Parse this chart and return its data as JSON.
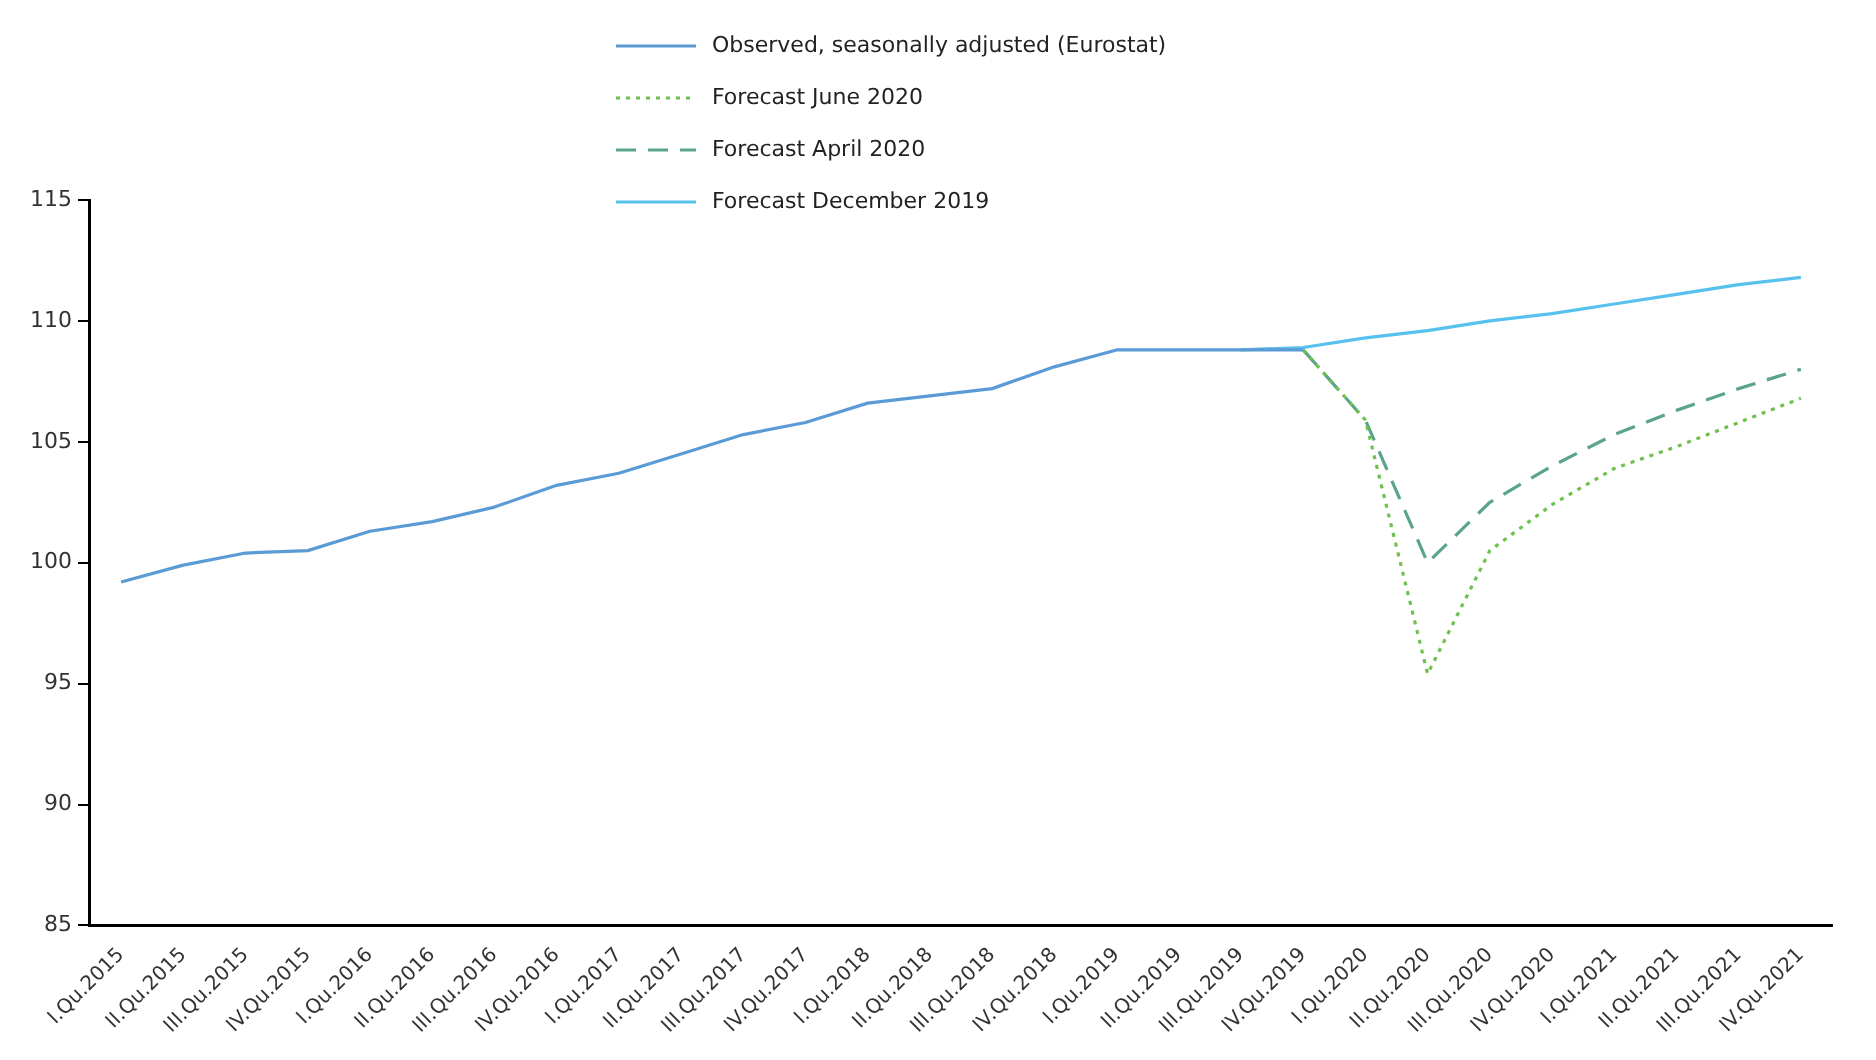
{
  "chart_data": {
    "type": "line",
    "categories": [
      "I.Qu.2015",
      "II.Qu.2015",
      "III.Qu.2015",
      "IV.Qu.2015",
      "I.Qu.2016",
      "II.Qu.2016",
      "III.Qu.2016",
      "IV.Qu.2016",
      "I.Qu.2017",
      "II.Qu.2017",
      "III.Qu.2017",
      "IV.Qu.2017",
      "I.Qu.2018",
      "II.Qu.2018",
      "III.Qu.2018",
      "IV.Qu.2018",
      "I.Qu.2019",
      "II.Qu.2019",
      "III.Qu.2019",
      "IV.Qu.2019",
      "I.Qu.2020",
      "II.Qu.2020",
      "III.Qu.2020",
      "IV.Qu.2020",
      "I.Qu.2021",
      "II.Qu.2021",
      "III.Qu.2021",
      "IV.Qu.2021"
    ],
    "series": [
      {
        "name": "Observed, seasonally adjusted (Eurostat)",
        "color": "#5b9bd5",
        "line_style": "solid",
        "values": [
          99.2,
          99.9,
          100.4,
          100.5,
          101.3,
          101.7,
          102.3,
          103.2,
          103.7,
          104.5,
          105.3,
          105.8,
          106.6,
          106.9,
          107.2,
          108.1,
          108.8,
          108.8,
          108.8,
          108.8,
          null,
          null,
          null,
          null,
          null,
          null,
          null,
          null
        ]
      },
      {
        "name": "Forecast June 2020",
        "color": "#70c050",
        "line_style": "dotted",
        "values": [
          null,
          null,
          null,
          null,
          null,
          null,
          null,
          null,
          null,
          null,
          null,
          null,
          null,
          null,
          null,
          null,
          null,
          null,
          null,
          108.8,
          105.9,
          95.4,
          100.5,
          102.4,
          103.9,
          104.8,
          105.8,
          106.8
        ]
      },
      {
        "name": "Forecast April 2020",
        "color": "#5aa58a",
        "line_style": "dashed",
        "values": [
          null,
          null,
          null,
          null,
          null,
          null,
          null,
          null,
          null,
          null,
          null,
          null,
          null,
          null,
          null,
          null,
          null,
          null,
          null,
          108.8,
          105.9,
          100.0,
          102.5,
          104.0,
          105.3,
          106.3,
          107.2,
          108.0
        ]
      },
      {
        "name": "Forecast December 2019",
        "color": "#57c1ee",
        "line_style": "solid",
        "values": [
          null,
          null,
          null,
          null,
          null,
          null,
          null,
          null,
          null,
          null,
          null,
          null,
          null,
          null,
          null,
          null,
          null,
          null,
          108.8,
          108.9,
          109.3,
          109.6,
          110.0,
          110.3,
          110.7,
          111.1,
          111.5,
          111.8
        ]
      }
    ],
    "ylim": [
      85,
      115
    ],
    "yticks": [
      85,
      90,
      95,
      100,
      105,
      110,
      115
    ],
    "grid": false,
    "legend": "top",
    "marker": "none"
  }
}
